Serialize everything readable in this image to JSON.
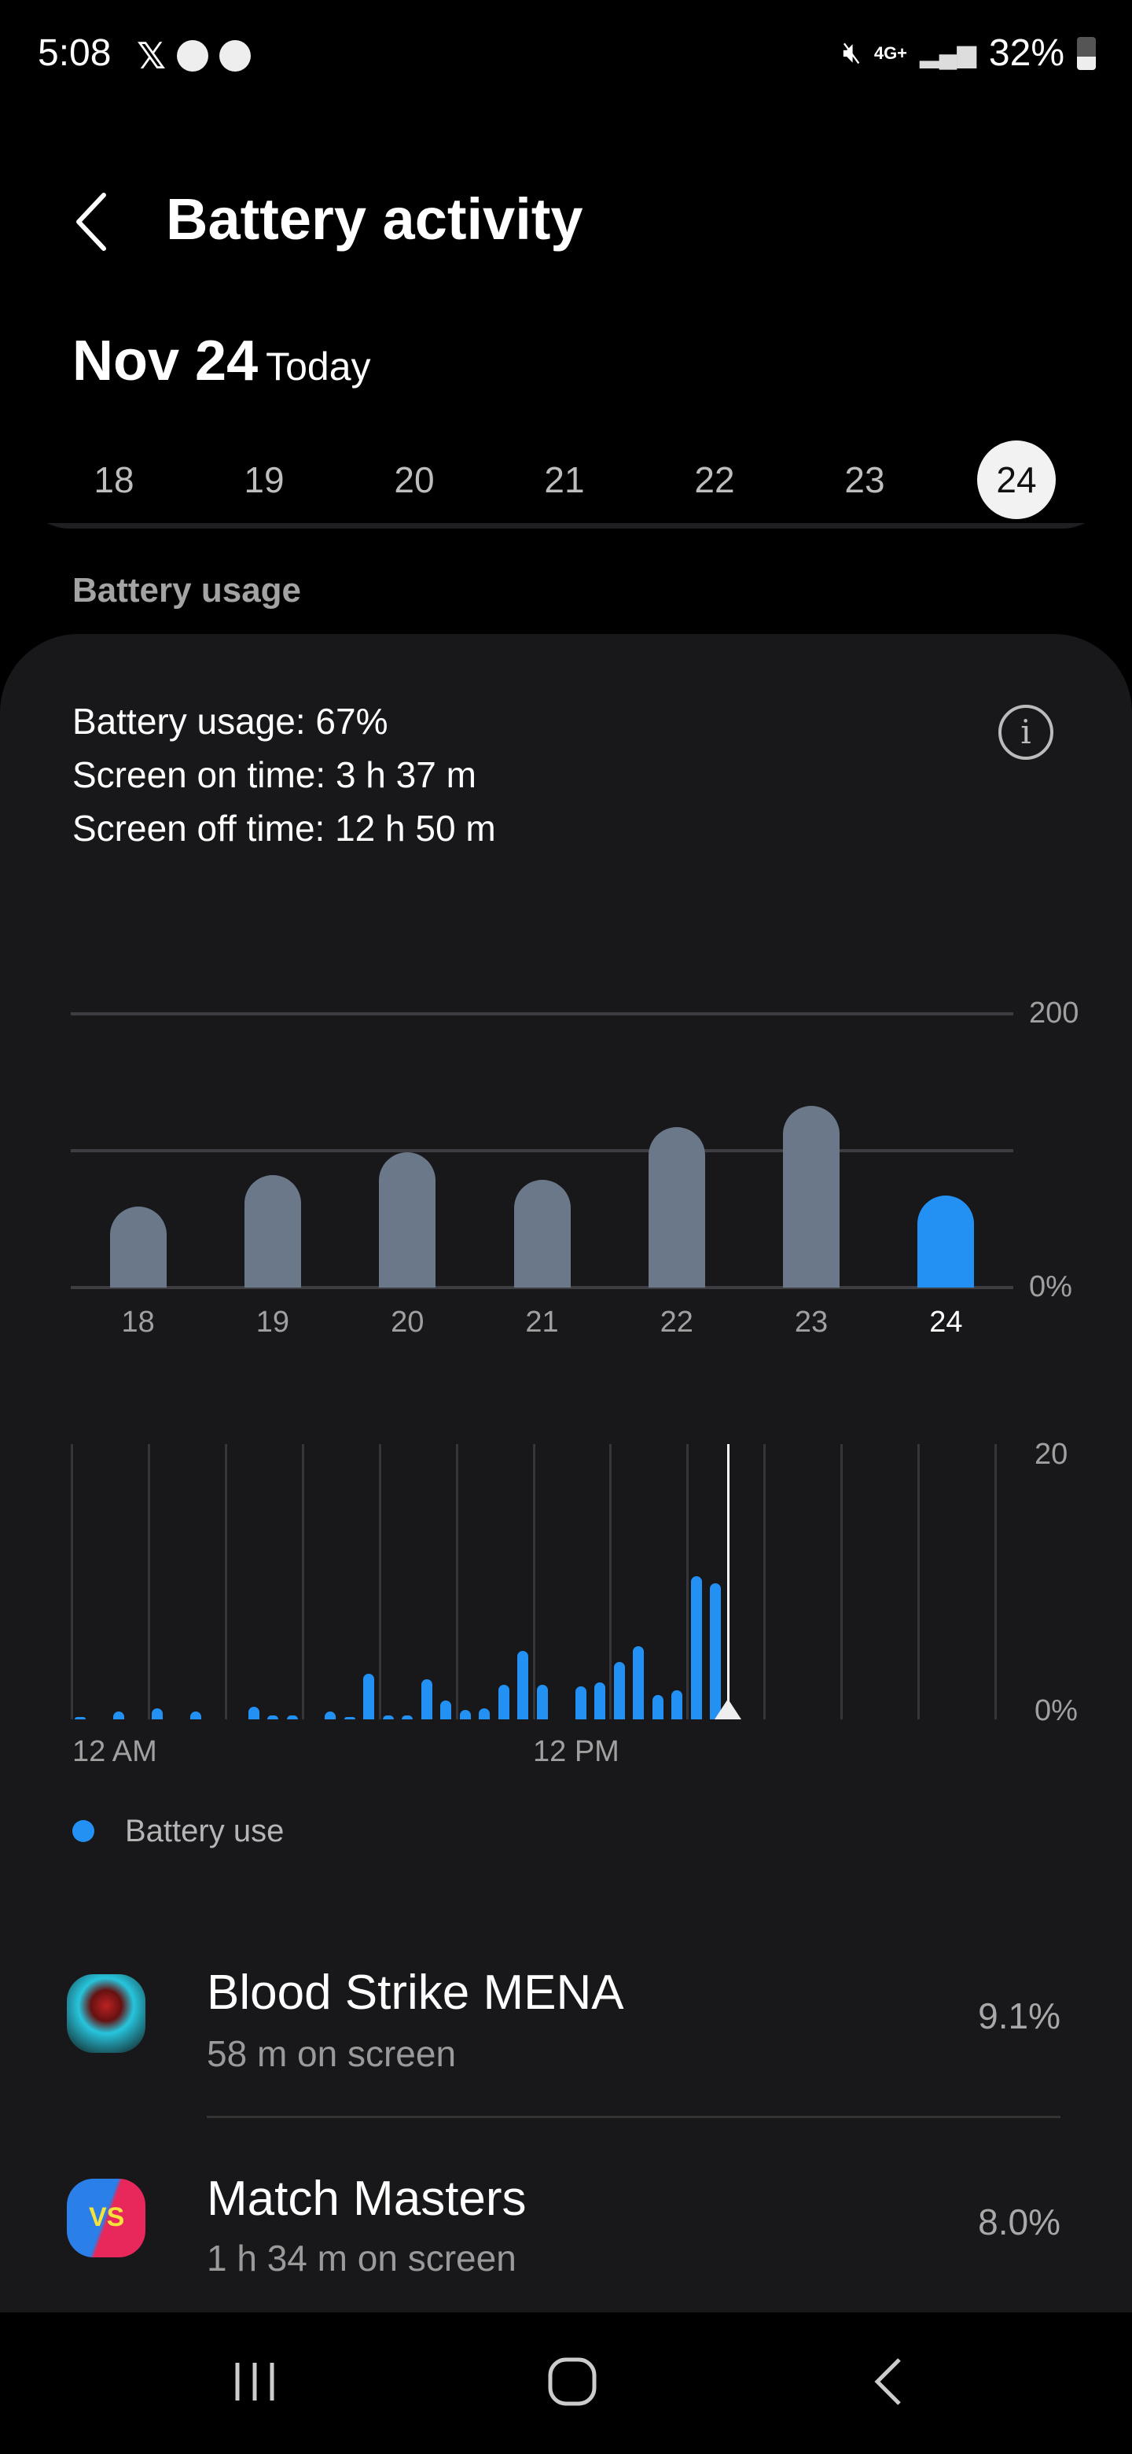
{
  "status_bar": {
    "time": "5:08",
    "battery": "32%",
    "network": "4G+",
    "icons": [
      "x-icon",
      "messenger-icon",
      "messenger-icon",
      "mute-icon",
      "signal-icon",
      "battery-icon"
    ]
  },
  "header": {
    "title": "Battery activity",
    "date": "Nov 24",
    "date_suffix": "Today",
    "days": [
      "18",
      "19",
      "20",
      "21",
      "22",
      "23",
      "24"
    ],
    "selected_day": "24"
  },
  "section_label": "Battery usage",
  "summary": {
    "usage": "Battery usage: 67%",
    "screen_on": "Screen on time: 3 h 37 m",
    "screen_off": "Screen off time: 12 h 50 m"
  },
  "colors": {
    "accent": "#2391f4",
    "past_bar": "#6b788a",
    "card": "#18181b"
  },
  "chart_data": [
    {
      "type": "bar",
      "categories": [
        "18",
        "19",
        "20",
        "21",
        "22",
        "23",
        "24"
      ],
      "values": [
        59,
        82,
        99,
        79,
        117,
        133,
        67
      ],
      "highlight": "24",
      "ylim": [
        0,
        200
      ],
      "ytick_labels": [
        "200",
        "0%"
      ],
      "grid": true
    },
    {
      "type": "bar",
      "x_unit": "30-minute slots from 12 AM",
      "xtick_labels": [
        "12 AM",
        "12 PM"
      ],
      "ytick_labels": [
        "20",
        "0%"
      ],
      "ylim": [
        0,
        20
      ],
      "values": [
        0.1,
        0,
        0.6,
        0,
        0.8,
        0,
        0.6,
        0,
        0,
        0.9,
        0.3,
        0.3,
        0,
        0.6,
        0.1,
        3.3,
        0.3,
        0.3,
        2.9,
        1.4,
        0.7,
        0.8,
        2.5,
        5.0,
        2.5,
        0,
        2.4,
        2.7,
        4.2,
        5.3,
        1.8,
        2.1,
        10.4,
        9.9,
        0,
        0,
        0,
        0,
        0,
        0,
        0,
        0,
        0,
        0,
        0,
        0,
        0,
        0
      ],
      "current_time": "5:08 PM",
      "legend": [
        "Battery use"
      ],
      "grid": true
    }
  ],
  "apps": [
    {
      "name": "Blood Strike MENA",
      "screen": "58 m on screen",
      "percent": "9.1%"
    },
    {
      "name": "Match Masters",
      "screen": "1 h 34 m on screen",
      "percent": "8.0%"
    }
  ]
}
